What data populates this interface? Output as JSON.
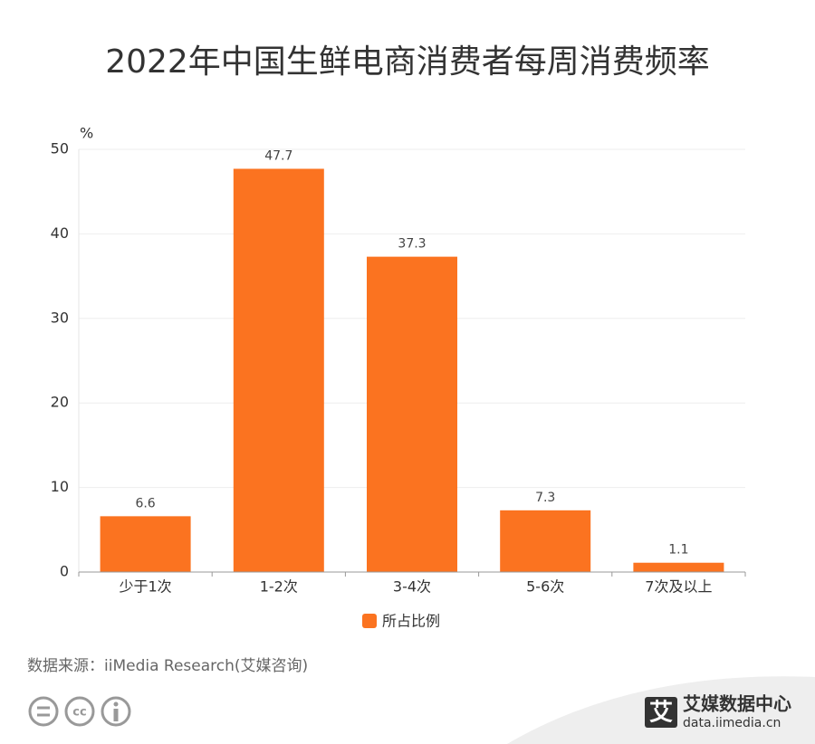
{
  "chart_data": {
    "type": "bar",
    "title": "2022年中国生鲜电商消费者每周消费频率",
    "y_unit": "%",
    "categories": [
      "少于1次",
      "1-2次",
      "3-4次",
      "5-6次",
      "7次及以上"
    ],
    "series": [
      {
        "name": "所占比例",
        "color": "#fb7320",
        "values": [
          6.6,
          47.7,
          37.3,
          7.3,
          1.1
        ]
      }
    ],
    "ylim": [
      0,
      50
    ],
    "yticks": [
      0,
      10,
      20,
      30,
      40,
      50
    ],
    "grid": true,
    "source": "数据来源：iiMedia Research(艾媒咨询)"
  },
  "footer": {
    "cc_label": "cc",
    "logo_mark": "艾",
    "brand": "艾媒数据中心",
    "url": "data.iimedia.cn"
  }
}
